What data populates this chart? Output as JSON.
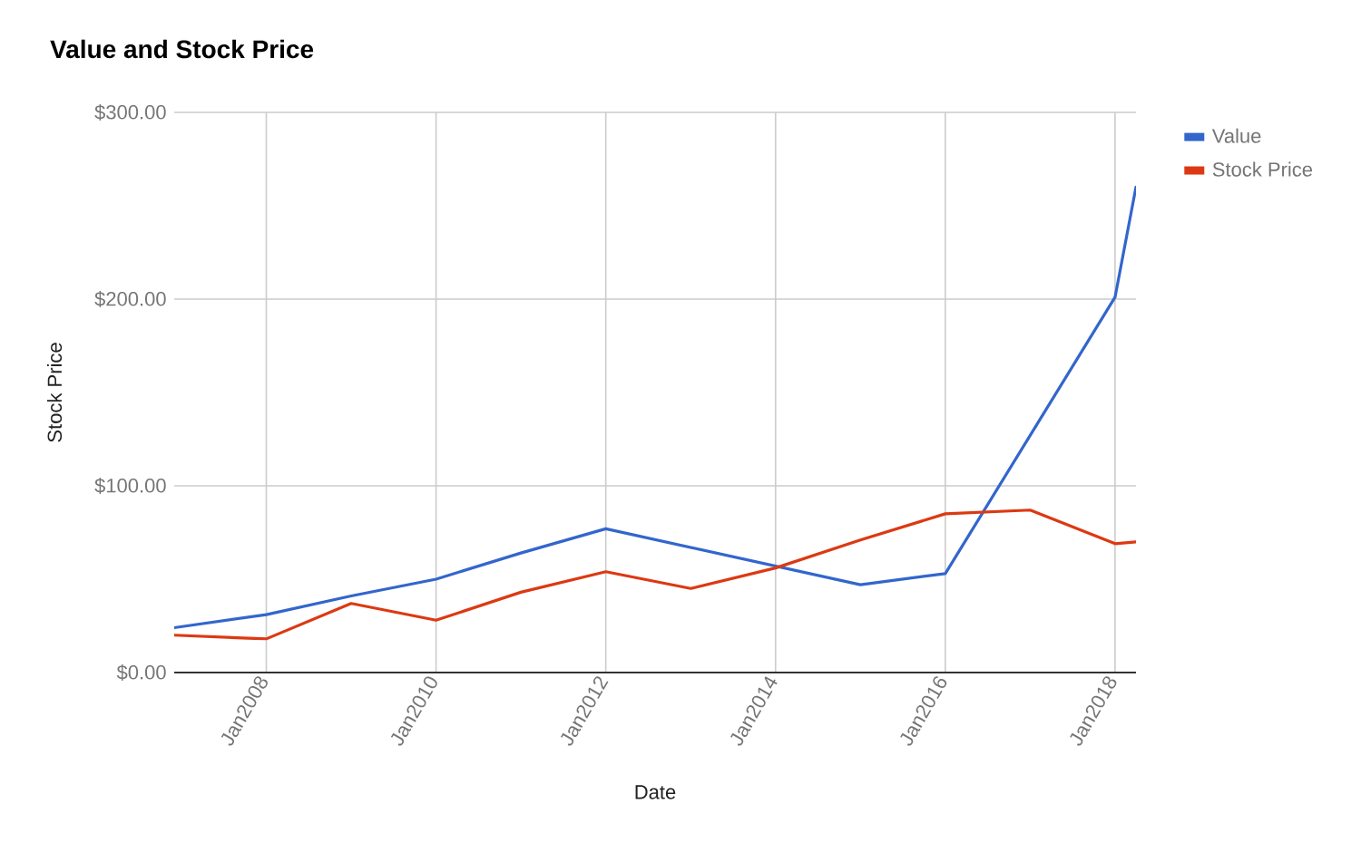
{
  "chart_data": {
    "type": "line",
    "title": "Value and Stock Price",
    "xlabel": "Date",
    "ylabel": "Stock Price",
    "x": [
      "2006-12",
      "2008-01",
      "2009-01",
      "2010-01",
      "2011-01",
      "2012-01",
      "2013-01",
      "2014-01",
      "2015-01",
      "2016-01",
      "2017-01",
      "2018-01",
      "2018-04"
    ],
    "series": [
      {
        "name": "Value",
        "color": "#3366cc",
        "values": [
          24,
          31,
          41,
          50,
          64,
          77,
          67,
          57,
          47,
          53,
          127,
          201,
          260
        ]
      },
      {
        "name": "Stock Price",
        "color": "#dc3912",
        "values": [
          20,
          18,
          37,
          28,
          43,
          54,
          45,
          56,
          71,
          85,
          87,
          69,
          70
        ]
      }
    ],
    "xlim": [
      "2006-12",
      "2018-04"
    ],
    "xticks": [
      {
        "value": "2008-01",
        "label": "Jan2008"
      },
      {
        "value": "2010-01",
        "label": "Jan2010"
      },
      {
        "value": "2012-01",
        "label": "Jan2012"
      },
      {
        "value": "2014-01",
        "label": "Jan2014"
      },
      {
        "value": "2016-01",
        "label": "Jan2016"
      },
      {
        "value": "2018-01",
        "label": "Jan2018"
      }
    ],
    "ylim": [
      0,
      300
    ],
    "yticks": [
      {
        "value": 0,
        "label": "$0.00"
      },
      {
        "value": 100,
        "label": "$100.00"
      },
      {
        "value": 200,
        "label": "$200.00"
      },
      {
        "value": 300,
        "label": "$300.00"
      }
    ],
    "grid": true,
    "legend": "top right",
    "line_style": "solid"
  }
}
